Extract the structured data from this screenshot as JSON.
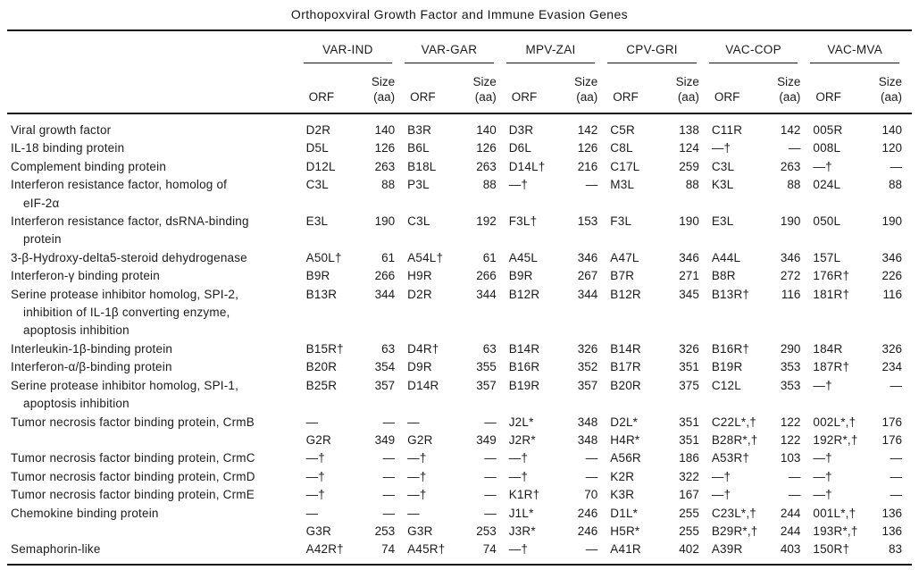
{
  "title": "Orthopoxviral Growth Factor and Immune Evasion Genes",
  "table": {
    "groups": [
      "VAR-IND",
      "VAR-GAR",
      "MPV-ZAI",
      "CPV-GRI",
      "VAC-COP",
      "VAC-MVA"
    ],
    "orf_header": "ORF",
    "size_header": "Size\n(aa)",
    "rows": [
      {
        "label": "Viral growth factor",
        "cells": [
          "D2R",
          "140",
          "B3R",
          "140",
          "D3R",
          "142",
          "C5R",
          "138",
          "C11R",
          "142",
          "005R",
          "140"
        ]
      },
      {
        "label": "IL-18 binding protein",
        "cells": [
          "D5L",
          "126",
          "B6L",
          "126",
          "D6L",
          "126",
          "C8L",
          "124",
          "—†",
          "—",
          "008L",
          "120"
        ]
      },
      {
        "label": "Complement binding protein",
        "cells": [
          "D12L",
          "263",
          "B18L",
          "263",
          "D14L†",
          "216",
          "C17L",
          "259",
          "C3L",
          "263",
          "—†",
          "—"
        ]
      },
      {
        "label": "Interferon resistance factor, homolog of\neIF-2α",
        "cells": [
          "C3L",
          "88",
          "P3L",
          "88",
          "—†",
          "—",
          "M3L",
          "88",
          "K3L",
          "88",
          "024L",
          "88"
        ]
      },
      {
        "label": "Interferon resistance factor, dsRNA-binding\nprotein",
        "cells": [
          "E3L",
          "190",
          "C3L",
          "192",
          "F3L†",
          "153",
          "F3L",
          "190",
          "E3L",
          "190",
          "050L",
          "190"
        ]
      },
      {
        "label": "3-β-Hydroxy-delta5-steroid dehydrogenase",
        "cells": [
          "A50L†",
          "61",
          "A54L†",
          "61",
          "A45L",
          "346",
          "A47L",
          "346",
          "A44L",
          "346",
          "157L",
          "346"
        ]
      },
      {
        "label": "Interferon-γ binding protein",
        "cells": [
          "B9R",
          "266",
          "H9R",
          "266",
          "B9R",
          "267",
          "B7R",
          "271",
          "B8R",
          "272",
          "176R†",
          "226"
        ]
      },
      {
        "label": "Serine protease inhibitor homolog, SPI-2,\ninhibition of IL-1β converting enzyme,\napoptosis inhibition",
        "cells": [
          "B13R",
          "344",
          "D2R",
          "344",
          "B12R",
          "344",
          "B12R",
          "345",
          "B13R†",
          "116",
          "181R†",
          "116"
        ]
      },
      {
        "label": "Interleukin-1β-binding protein",
        "cells": [
          "B15R†",
          "63",
          "D4R†",
          "63",
          "B14R",
          "326",
          "B14R",
          "326",
          "B16R†",
          "290",
          "184R",
          "326"
        ]
      },
      {
        "label": "Interferon-α/β-binding protein",
        "cells": [
          "B20R",
          "354",
          "D9R",
          "355",
          "B16R",
          "352",
          "B17R",
          "351",
          "B19R",
          "353",
          "187R†",
          "234"
        ]
      },
      {
        "label": "Serine protease inhibitor homolog, SPI-1,\napoptosis inhibition",
        "cells": [
          "B25R",
          "357",
          "D14R",
          "357",
          "B19R",
          "357",
          "B20R",
          "375",
          "C12L",
          "353",
          "—†",
          "—"
        ]
      },
      {
        "label": "Tumor necrosis factor binding protein, CrmB",
        "cells": [
          "—",
          "—",
          "—",
          "—",
          "J2L*",
          "348",
          "D2L*",
          "351",
          "C22L*,†",
          "122",
          "002L*,†",
          "176"
        ]
      },
      {
        "label": "",
        "cells": [
          "G2R",
          "349",
          "G2R",
          "349",
          "J2R*",
          "348",
          "H4R*",
          "351",
          "B28R*,†",
          "122",
          "192R*,†",
          "176"
        ]
      },
      {
        "label": "Tumor necrosis factor binding protein, CrmC",
        "cells": [
          "—†",
          "—",
          "—†",
          "—",
          "—†",
          "—",
          "A56R",
          "186",
          "A53R†",
          "103",
          "—†",
          "—"
        ]
      },
      {
        "label": "Tumor necrosis factor binding protein, CrmD",
        "cells": [
          "—†",
          "—",
          "—†",
          "—",
          "—†",
          "—",
          "K2R",
          "322",
          "—†",
          "—",
          "—†",
          "—"
        ]
      },
      {
        "label": "Tumor necrosis factor binding protein, CrmE",
        "cells": [
          "—†",
          "—",
          "—†",
          "—",
          "K1R†",
          "70",
          "K3R",
          "167",
          "—†",
          "—",
          "—†",
          "—"
        ]
      },
      {
        "label": "Chemokine binding protein",
        "cells": [
          "—",
          "—",
          "—",
          "—",
          "J1L*",
          "246",
          "D1L*",
          "255",
          "C23L*,†",
          "244",
          "001L*,†",
          "136"
        ]
      },
      {
        "label": "",
        "cells": [
          "G3R",
          "253",
          "G3R",
          "253",
          "J3R*",
          "246",
          "H5R*",
          "255",
          "B29R*,†",
          "244",
          "193R*,†",
          "136"
        ]
      },
      {
        "label": "Semaphorin-like",
        "cells": [
          "A42R†",
          "74",
          "A45R†",
          "74",
          "—†",
          "—",
          "A41R",
          "402",
          "A39R",
          "403",
          "150R†",
          "83"
        ]
      }
    ]
  }
}
